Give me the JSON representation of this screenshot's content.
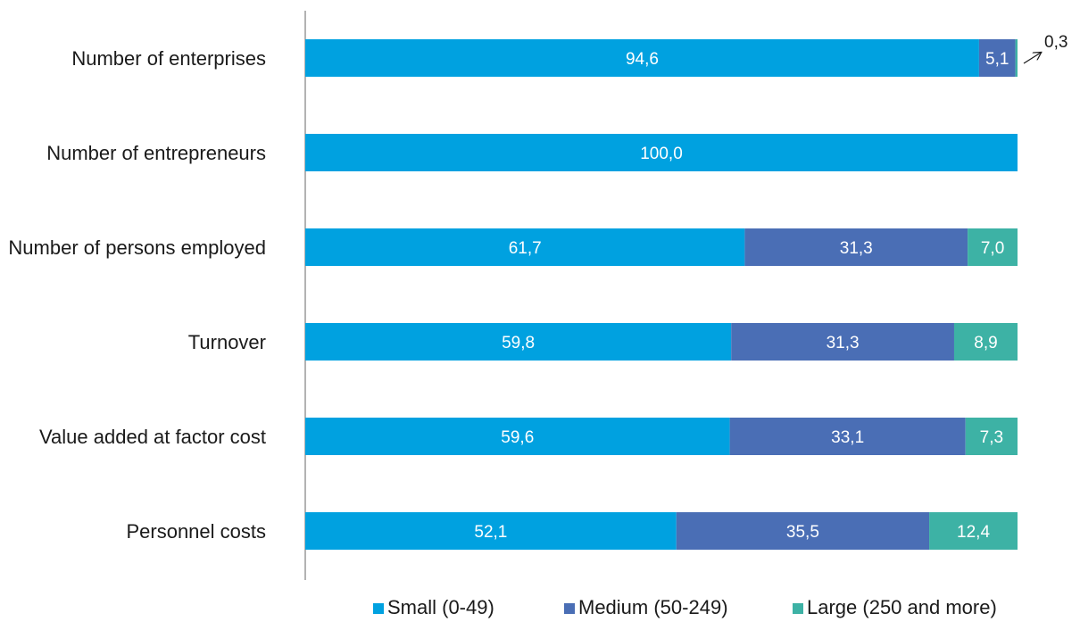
{
  "chart_data": {
    "type": "bar",
    "orientation": "horizontal",
    "stacked": true,
    "title": "",
    "xlabel": "",
    "ylabel": "",
    "xlim": [
      0,
      100
    ],
    "grid": false,
    "legend_position": "bottom",
    "categories": [
      "Number of enterprises",
      "Number of entrepreneurs",
      "Number of persons employed",
      "Turnover",
      "Value added at factor cost",
      "Personnel costs"
    ],
    "series": [
      {
        "name": "Small (0-49)",
        "color": "#00a1e0",
        "values": [
          94.6,
          100.0,
          61.7,
          59.8,
          59.6,
          52.1
        ],
        "labels": [
          "94,6",
          "100,0",
          "61,7",
          "59,8",
          "59,6",
          "52,1"
        ]
      },
      {
        "name": "Medium (50-249)",
        "color": "#4a6eb5",
        "values": [
          5.1,
          0,
          31.3,
          31.3,
          33.1,
          35.5
        ],
        "labels": [
          "5,1",
          "",
          "31,3",
          "31,3",
          "33,1",
          "35,5"
        ]
      },
      {
        "name": "Large (250 and more)",
        "color": "#3db2a5",
        "values": [
          0.3,
          0,
          7.0,
          8.9,
          7.3,
          12.4
        ],
        "labels": [
          "0,3",
          "",
          "7,0",
          "8,9",
          "7,3",
          "12,4"
        ]
      }
    ],
    "annotations": [
      {
        "category": "Number of enterprises",
        "series": "Large (250 and more)",
        "text": "0,3",
        "arrow": true
      }
    ],
    "axis_color": "#808080",
    "label_color": "#1a1a1a"
  }
}
